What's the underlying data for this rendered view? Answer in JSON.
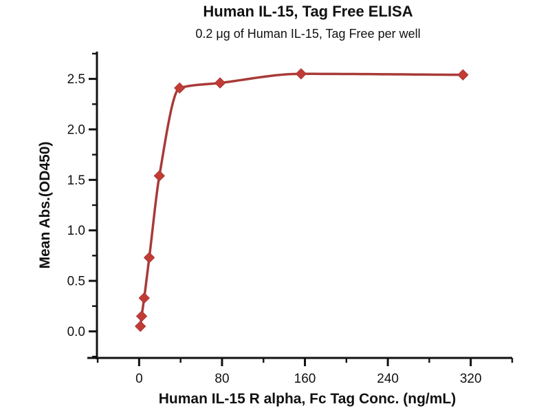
{
  "chart_data": {
    "type": "scatter-line",
    "title": "Human IL-15, Tag Free ELISA",
    "subtitle": "0.2 μg of Human IL-15, Tag Free per well",
    "xlabel": "Human IL-15 R alpha, Fc Tag Conc. (ng/mL)",
    "ylabel": "Mean Abs.(OD450)",
    "x": [
      1.22,
      2.44,
      4.88,
      9.77,
      19.53,
      39.06,
      78.13,
      156.25,
      312.5
    ],
    "y": [
      0.05,
      0.15,
      0.33,
      0.73,
      1.54,
      2.41,
      2.46,
      2.55,
      2.54
    ],
    "xlim": [
      -50,
      360
    ],
    "ylim": [
      -0.27,
      2.77
    ],
    "x_ticks": {
      "major": [
        0,
        80,
        160,
        240,
        320
      ],
      "labels": [
        "0",
        "80",
        "160",
        "240",
        "320"
      ],
      "minor": [
        -40,
        40,
        120,
        200,
        280,
        360
      ]
    },
    "y_ticks": {
      "major": [
        0.0,
        0.5,
        1.0,
        1.5,
        2.0,
        2.5
      ],
      "labels": [
        "0.0",
        "0.5",
        "1.0",
        "1.5",
        "2.0",
        "2.5"
      ],
      "minor": [
        -0.25,
        0.25,
        0.75,
        1.25,
        1.75,
        2.25,
        2.75
      ]
    },
    "grid": false,
    "legend": null,
    "marker_shape": "diamond",
    "colors": {
      "line": "#a83a38",
      "marker": "#c23b34",
      "axis": "#111111",
      "text": "#111111"
    }
  }
}
